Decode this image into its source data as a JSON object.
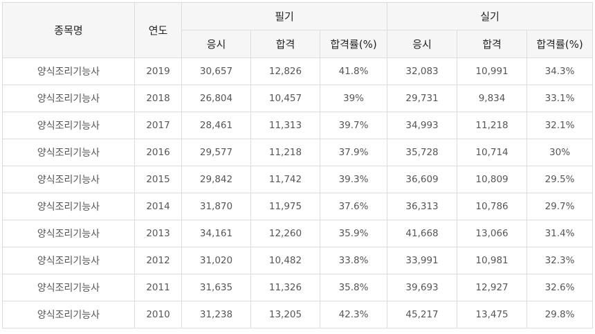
{
  "headers": {
    "name": "종목명",
    "year": "연도",
    "written": "필기",
    "practical": "실기",
    "applicants": "응시",
    "passed": "합격",
    "rate": "합격률(%)"
  },
  "rows": [
    {
      "name": "양식조리기능사",
      "year": "2019",
      "w_app": "30,657",
      "w_pass": "12,826",
      "w_rate": "41.8%",
      "p_app": "32,083",
      "p_pass": "10,991",
      "p_rate": "34.3%"
    },
    {
      "name": "양식조리기능사",
      "year": "2018",
      "w_app": "26,804",
      "w_pass": "10,457",
      "w_rate": "39%",
      "p_app": "29,731",
      "p_pass": "9,834",
      "p_rate": "33.1%"
    },
    {
      "name": "양식조리기능사",
      "year": "2017",
      "w_app": "28,461",
      "w_pass": "11,313",
      "w_rate": "39.7%",
      "p_app": "34,993",
      "p_pass": "11,218",
      "p_rate": "32.1%"
    },
    {
      "name": "양식조리기능사",
      "year": "2016",
      "w_app": "29,577",
      "w_pass": "11,218",
      "w_rate": "37.9%",
      "p_app": "35,728",
      "p_pass": "10,714",
      "p_rate": "30%"
    },
    {
      "name": "양식조리기능사",
      "year": "2015",
      "w_app": "29,842",
      "w_pass": "11,742",
      "w_rate": "39.3%",
      "p_app": "36,609",
      "p_pass": "10,809",
      "p_rate": "29.5%"
    },
    {
      "name": "양식조리기능사",
      "year": "2014",
      "w_app": "31,870",
      "w_pass": "11,975",
      "w_rate": "37.6%",
      "p_app": "36,313",
      "p_pass": "10,786",
      "p_rate": "29.7%"
    },
    {
      "name": "양식조리기능사",
      "year": "2013",
      "w_app": "34,161",
      "w_pass": "12,260",
      "w_rate": "35.9%",
      "p_app": "41,668",
      "p_pass": "13,066",
      "p_rate": "31.4%"
    },
    {
      "name": "양식조리기능사",
      "year": "2012",
      "w_app": "31,020",
      "w_pass": "10,482",
      "w_rate": "33.8%",
      "p_app": "33,991",
      "p_pass": "10,981",
      "p_rate": "32.3%"
    },
    {
      "name": "양식조리기능사",
      "year": "2011",
      "w_app": "31,635",
      "w_pass": "11,326",
      "w_rate": "35.8%",
      "p_app": "39,693",
      "p_pass": "12,927",
      "p_rate": "32.6%"
    },
    {
      "name": "양식조리기능사",
      "year": "2010",
      "w_app": "31,238",
      "w_pass": "13,205",
      "w_rate": "42.3%",
      "p_app": "45,217",
      "p_pass": "13,475",
      "p_rate": "29.8%"
    }
  ]
}
